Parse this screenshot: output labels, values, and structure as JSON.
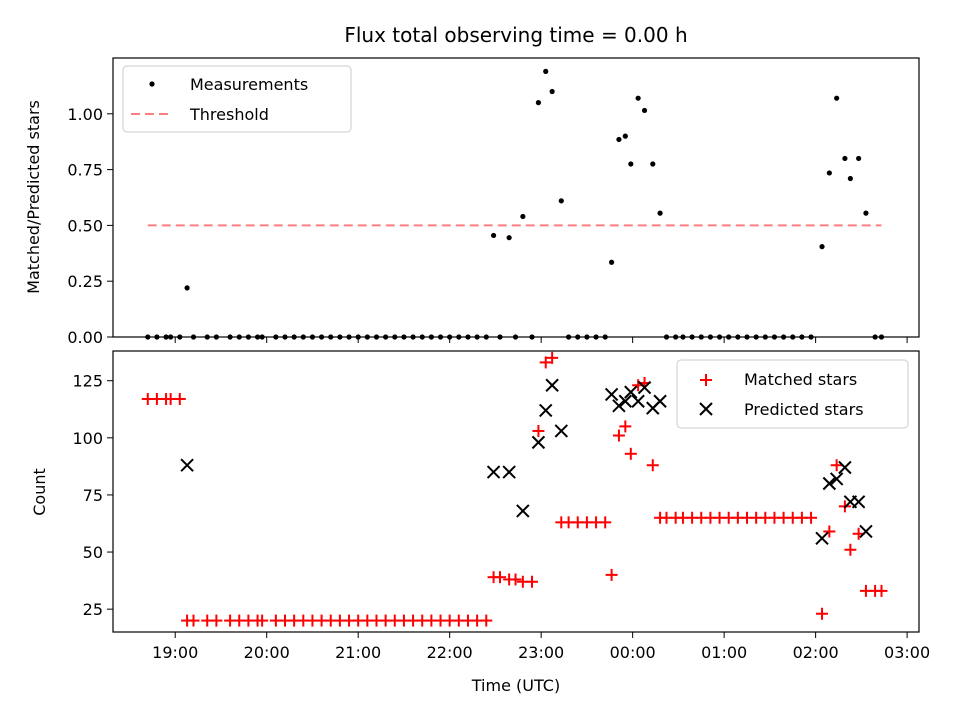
{
  "chart_data": [
    {
      "type": "scatter",
      "title": "Flux total observing time = 0.00 h",
      "xlabel": "",
      "ylabel": "Matched/Predicted stars",
      "ylim": [
        0,
        1.25
      ],
      "yticks": [
        "0.00",
        "0.25",
        "0.50",
        "0.75",
        "1.00"
      ],
      "legend_position": "upper-left",
      "colors": {
        "measurements": "#000000",
        "threshold": "#ff7f7f"
      },
      "series": [
        {
          "name": "Measurements",
          "points": [
            [
              18.7,
              0
            ],
            [
              18.8,
              0
            ],
            [
              18.9,
              0
            ],
            [
              18.95,
              0
            ],
            [
              19.05,
              0
            ],
            [
              19.13,
              0.22
            ],
            [
              19.2,
              0
            ],
            [
              19.35,
              0
            ],
            [
              19.45,
              0
            ],
            [
              19.6,
              0
            ],
            [
              19.7,
              0
            ],
            [
              19.8,
              0
            ],
            [
              19.9,
              0
            ],
            [
              19.95,
              0
            ],
            [
              20.1,
              0
            ],
            [
              20.2,
              0
            ],
            [
              20.3,
              0
            ],
            [
              20.4,
              0
            ],
            [
              20.5,
              0
            ],
            [
              20.6,
              0
            ],
            [
              20.7,
              0
            ],
            [
              20.8,
              0
            ],
            [
              20.9,
              0
            ],
            [
              21.0,
              0
            ],
            [
              21.1,
              0
            ],
            [
              21.2,
              0
            ],
            [
              21.3,
              0
            ],
            [
              21.4,
              0
            ],
            [
              21.5,
              0
            ],
            [
              21.6,
              0
            ],
            [
              21.7,
              0
            ],
            [
              21.8,
              0
            ],
            [
              21.9,
              0
            ],
            [
              22.0,
              0
            ],
            [
              22.1,
              0
            ],
            [
              22.2,
              0
            ],
            [
              22.3,
              0
            ],
            [
              22.4,
              0
            ],
            [
              22.48,
              0.455
            ],
            [
              22.55,
              0
            ],
            [
              22.65,
              0.445
            ],
            [
              22.72,
              0
            ],
            [
              22.8,
              0.54
            ],
            [
              22.9,
              0
            ],
            [
              22.97,
              1.05
            ],
            [
              23.05,
              1.19
            ],
            [
              23.12,
              1.1
            ],
            [
              23.22,
              0.61
            ],
            [
              23.3,
              0
            ],
            [
              23.4,
              0
            ],
            [
              23.5,
              0
            ],
            [
              23.6,
              0
            ],
            [
              23.7,
              0
            ],
            [
              23.77,
              0.335
            ],
            [
              23.85,
              0.885
            ],
            [
              23.92,
              0.9
            ],
            [
              23.98,
              0.775
            ],
            [
              24.06,
              1.07
            ],
            [
              24.13,
              1.015
            ],
            [
              24.22,
              0.775
            ],
            [
              24.3,
              0.555
            ],
            [
              24.37,
              0
            ],
            [
              24.47,
              0
            ],
            [
              24.55,
              0
            ],
            [
              24.65,
              0
            ],
            [
              24.75,
              0
            ],
            [
              24.85,
              0
            ],
            [
              24.95,
              0
            ],
            [
              25.05,
              0
            ],
            [
              25.15,
              0
            ],
            [
              25.25,
              0
            ],
            [
              25.35,
              0
            ],
            [
              25.45,
              0
            ],
            [
              25.55,
              0
            ],
            [
              25.65,
              0
            ],
            [
              25.75,
              0
            ],
            [
              25.85,
              0
            ],
            [
              25.95,
              0
            ],
            [
              26.07,
              0.405
            ],
            [
              26.15,
              0.735
            ],
            [
              26.23,
              1.07
            ],
            [
              26.32,
              0.8
            ],
            [
              26.38,
              0.71
            ],
            [
              26.47,
              0.8
            ],
            [
              26.55,
              0.555
            ],
            [
              26.65,
              0
            ],
            [
              26.72,
              0
            ]
          ]
        },
        {
          "name": "Threshold",
          "line": [
            [
              18.7,
              0.5
            ],
            [
              26.72,
              0.5
            ]
          ]
        }
      ]
    },
    {
      "type": "scatter",
      "title": "",
      "xlabel": "Time (UTC)",
      "ylabel": "Count",
      "ylim": [
        15,
        138
      ],
      "yticks": [
        "25",
        "50",
        "75",
        "100",
        "125"
      ],
      "xlim": [
        18.32,
        27.13
      ],
      "xticks": [
        {
          "v": 19,
          "label": "19:00"
        },
        {
          "v": 20,
          "label": "20:00"
        },
        {
          "v": 21,
          "label": "21:00"
        },
        {
          "v": 22,
          "label": "22:00"
        },
        {
          "v": 23,
          "label": "23:00"
        },
        {
          "v": 24,
          "label": "00:00"
        },
        {
          "v": 25,
          "label": "01:00"
        },
        {
          "v": 26,
          "label": "02:00"
        },
        {
          "v": 27,
          "label": "03:00"
        }
      ],
      "legend_position": "upper-right",
      "colors": {
        "matched": "#ff0000",
        "predicted": "#000000"
      },
      "series": [
        {
          "name": "Matched stars",
          "points": [
            [
              18.7,
              117
            ],
            [
              18.8,
              117
            ],
            [
              18.9,
              117
            ],
            [
              18.95,
              117
            ],
            [
              19.05,
              117
            ],
            [
              19.13,
              20
            ],
            [
              19.2,
              20
            ],
            [
              19.35,
              20
            ],
            [
              19.45,
              20
            ],
            [
              19.6,
              20
            ],
            [
              19.7,
              20
            ],
            [
              19.8,
              20
            ],
            [
              19.9,
              20
            ],
            [
              19.95,
              20
            ],
            [
              20.1,
              20
            ],
            [
              20.2,
              20
            ],
            [
              20.3,
              20
            ],
            [
              20.4,
              20
            ],
            [
              20.5,
              20
            ],
            [
              20.6,
              20
            ],
            [
              20.7,
              20
            ],
            [
              20.8,
              20
            ],
            [
              20.9,
              20
            ],
            [
              21.0,
              20
            ],
            [
              21.1,
              20
            ],
            [
              21.2,
              20
            ],
            [
              21.3,
              20
            ],
            [
              21.4,
              20
            ],
            [
              21.5,
              20
            ],
            [
              21.6,
              20
            ],
            [
              21.7,
              20
            ],
            [
              21.8,
              20
            ],
            [
              21.9,
              20
            ],
            [
              22.0,
              20
            ],
            [
              22.1,
              20
            ],
            [
              22.2,
              20
            ],
            [
              22.3,
              20
            ],
            [
              22.4,
              20
            ],
            [
              22.48,
              39
            ],
            [
              22.55,
              39
            ],
            [
              22.65,
              38
            ],
            [
              22.72,
              38
            ],
            [
              22.8,
              37
            ],
            [
              22.9,
              37
            ],
            [
              22.97,
              103
            ],
            [
              23.05,
              133
            ],
            [
              23.12,
              135
            ],
            [
              23.22,
              63
            ],
            [
              23.3,
              63
            ],
            [
              23.4,
              63
            ],
            [
              23.5,
              63
            ],
            [
              23.6,
              63
            ],
            [
              23.7,
              63
            ],
            [
              23.77,
              40
            ],
            [
              23.85,
              101
            ],
            [
              23.92,
              105
            ],
            [
              23.98,
              93
            ],
            [
              24.06,
              123
            ],
            [
              24.13,
              124
            ],
            [
              24.22,
              88
            ],
            [
              24.3,
              65
            ],
            [
              24.37,
              65
            ],
            [
              24.47,
              65
            ],
            [
              24.55,
              65
            ],
            [
              24.65,
              65
            ],
            [
              24.75,
              65
            ],
            [
              24.85,
              65
            ],
            [
              24.95,
              65
            ],
            [
              25.05,
              65
            ],
            [
              25.15,
              65
            ],
            [
              25.25,
              65
            ],
            [
              25.35,
              65
            ],
            [
              25.45,
              65
            ],
            [
              25.55,
              65
            ],
            [
              25.65,
              65
            ],
            [
              25.75,
              65
            ],
            [
              25.85,
              65
            ],
            [
              25.95,
              65
            ],
            [
              26.07,
              23
            ],
            [
              26.15,
              59
            ],
            [
              26.23,
              88
            ],
            [
              26.32,
              70
            ],
            [
              26.38,
              51
            ],
            [
              26.47,
              58
            ],
            [
              26.55,
              33
            ],
            [
              26.65,
              33
            ],
            [
              26.72,
              33
            ]
          ]
        },
        {
          "name": "Predicted stars",
          "points": [
            [
              19.13,
              88
            ],
            [
              22.48,
              85
            ],
            [
              22.65,
              85
            ],
            [
              22.8,
              68
            ],
            [
              22.97,
              98
            ],
            [
              23.05,
              112
            ],
            [
              23.12,
              123
            ],
            [
              23.22,
              103
            ],
            [
              23.77,
              119
            ],
            [
              23.85,
              114
            ],
            [
              23.92,
              116
            ],
            [
              23.98,
              120
            ],
            [
              24.06,
              116
            ],
            [
              24.13,
              122
            ],
            [
              24.22,
              113
            ],
            [
              24.3,
              116
            ],
            [
              26.07,
              56
            ],
            [
              26.15,
              80
            ],
            [
              26.23,
              82
            ],
            [
              26.32,
              87
            ],
            [
              26.38,
              72
            ],
            [
              26.47,
              72
            ],
            [
              26.55,
              59
            ]
          ]
        }
      ]
    }
  ]
}
